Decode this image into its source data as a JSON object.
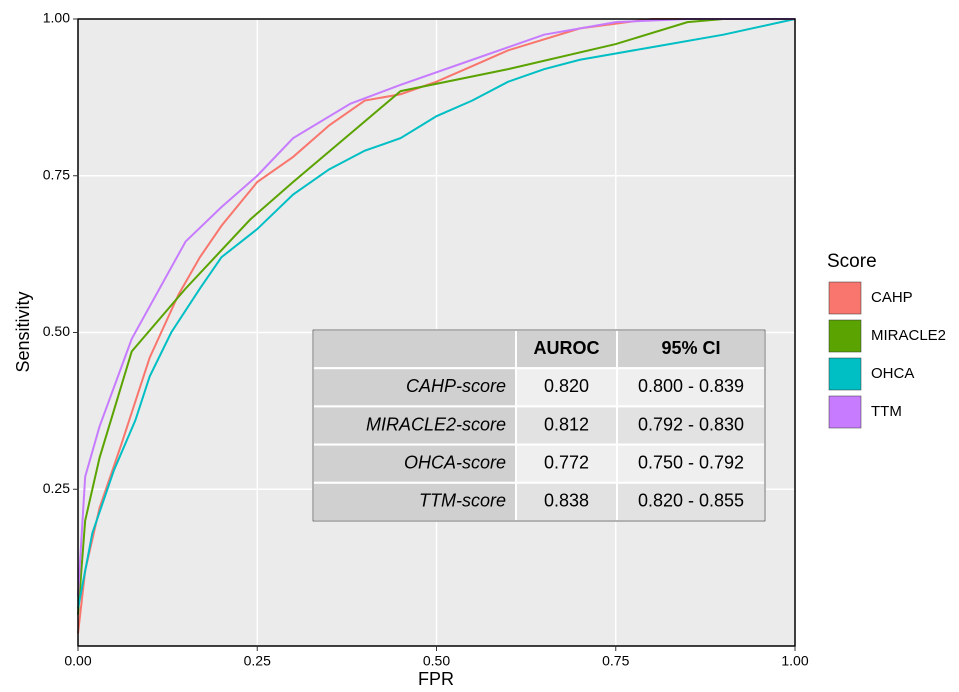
{
  "chart_data": {
    "type": "line",
    "x_label": "FPR",
    "y_label": "Sensitivity",
    "xlim": [
      0,
      1
    ],
    "ylim": [
      0,
      1
    ],
    "xticks": [
      {
        "value": 0,
        "label": "0.00"
      },
      {
        "value": 0.25,
        "label": "0.25"
      },
      {
        "value": 0.5,
        "label": "0.50"
      },
      {
        "value": 0.75,
        "label": "0.75"
      },
      {
        "value": 1,
        "label": "1.00"
      }
    ],
    "yticks": [
      {
        "value": 0.25,
        "label": "0.25"
      },
      {
        "value": 0.5,
        "label": "0.50"
      },
      {
        "value": 0.75,
        "label": "0.75"
      },
      {
        "value": 1,
        "label": "1.00"
      }
    ],
    "grid": true,
    "legend_title": "Score",
    "series": [
      {
        "name": "CAHP",
        "color": "#F8766D",
        "x": [
          0,
          0.01,
          0.03,
          0.06,
          0.1,
          0.14,
          0.17,
          0.2,
          0.25,
          0.3,
          0.35,
          0.4,
          0.45,
          0.5,
          0.55,
          0.6,
          0.7,
          0.8,
          1
        ],
        "values": [
          0.02,
          0.12,
          0.22,
          0.32,
          0.46,
          0.56,
          0.62,
          0.67,
          0.74,
          0.78,
          0.83,
          0.87,
          0.88,
          0.9,
          0.925,
          0.95,
          0.985,
          1,
          1
        ]
      },
      {
        "name": "MIRACLE2",
        "color": "#5BA300",
        "x": [
          0,
          0.01,
          0.03,
          0.075,
          0.15,
          0.24,
          0.3,
          0.45,
          0.6,
          0.75,
          0.85,
          0.9,
          1
        ],
        "values": [
          0.05,
          0.2,
          0.3,
          0.47,
          0.57,
          0.68,
          0.74,
          0.885,
          0.92,
          0.96,
          0.995,
          1,
          1
        ]
      },
      {
        "name": "OHCA",
        "color": "#00BFC4",
        "x": [
          0,
          0.02,
          0.05,
          0.08,
          0.1,
          0.13,
          0.17,
          0.2,
          0.25,
          0.3,
          0.35,
          0.4,
          0.45,
          0.5,
          0.55,
          0.6,
          0.65,
          0.7,
          0.75,
          0.8,
          0.9,
          1
        ],
        "values": [
          0.06,
          0.18,
          0.28,
          0.36,
          0.43,
          0.5,
          0.57,
          0.62,
          0.665,
          0.72,
          0.76,
          0.79,
          0.81,
          0.845,
          0.87,
          0.9,
          0.92,
          0.935,
          0.945,
          0.955,
          0.975,
          1
        ]
      },
      {
        "name": "TTM",
        "color": "#C77CFF",
        "x": [
          0,
          0.01,
          0.03,
          0.075,
          0.15,
          0.2,
          0.25,
          0.3,
          0.38,
          0.45,
          0.55,
          0.65,
          0.75,
          0.85,
          1
        ],
        "values": [
          0.08,
          0.27,
          0.35,
          0.49,
          0.645,
          0.7,
          0.75,
          0.81,
          0.865,
          0.895,
          0.935,
          0.975,
          0.995,
          1,
          1
        ]
      }
    ],
    "table": {
      "columns": [
        "AUROC",
        "95% CI"
      ],
      "rows": [
        [
          "CAHP-score",
          "0.820",
          "0.800 - 0.839"
        ],
        [
          "MIRACLE2-score",
          "0.812",
          "0.792 - 0.830"
        ],
        [
          "OHCA-score",
          "0.772",
          "0.750 - 0.792"
        ],
        [
          "TTM-score",
          "0.838",
          "0.820 - 0.855"
        ]
      ]
    }
  }
}
